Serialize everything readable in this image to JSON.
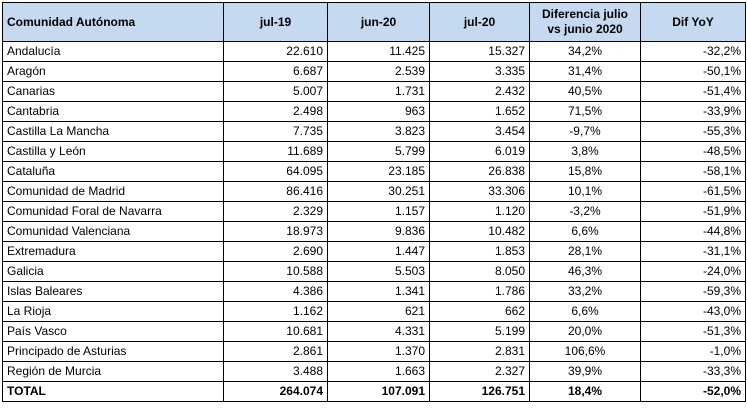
{
  "headers": [
    "Comunidad Autónoma",
    "jul-19",
    "jun-20",
    "jul-20",
    "Diferencia julio vs junio 2020",
    "Dif YoY"
  ],
  "rows": [
    [
      "Andalucía",
      "22.610",
      "11.425",
      "15.327",
      "34,2%",
      "-32,2%"
    ],
    [
      "Aragón",
      "6.687",
      "2.539",
      "3.335",
      "31,4%",
      "-50,1%"
    ],
    [
      "Canarias",
      "5.007",
      "1.731",
      "2.432",
      "40,5%",
      "-51,4%"
    ],
    [
      "Cantabria",
      "2.498",
      "963",
      "1.652",
      "71,5%",
      "-33,9%"
    ],
    [
      "Castilla La Mancha",
      "7.735",
      "3.823",
      "3.454",
      "-9,7%",
      "-55,3%"
    ],
    [
      "Castilla y León",
      "11.689",
      "5.799",
      "6.019",
      "3,8%",
      "-48,5%"
    ],
    [
      "Cataluña",
      "64.095",
      "23.185",
      "26.838",
      "15,8%",
      "-58,1%"
    ],
    [
      "Comunidad de Madrid",
      "86.416",
      "30.251",
      "33.306",
      "10,1%",
      "-61,5%"
    ],
    [
      "Comunidad Foral de Navarra",
      "2.329",
      "1.157",
      "1.120",
      "-3,2%",
      "-51,9%"
    ],
    [
      "Comunidad Valenciana",
      "18.973",
      "9.836",
      "10.482",
      "6,6%",
      "-44,8%"
    ],
    [
      "Extremadura",
      "2.690",
      "1.447",
      "1.853",
      "28,1%",
      "-31,1%"
    ],
    [
      "Galicia",
      "10.588",
      "5.503",
      "8.050",
      "46,3%",
      "-24,0%"
    ],
    [
      "Islas Baleares",
      "4.386",
      "1.341",
      "1.786",
      "33,2%",
      "-59,3%"
    ],
    [
      "La Rioja",
      "1.162",
      "621",
      "662",
      "6,6%",
      "-43,0%"
    ],
    [
      "País Vasco",
      "10.681",
      "4.331",
      "5.199",
      "20,0%",
      "-51,3%"
    ],
    [
      "Principado de Asturias",
      "2.861",
      "1.370",
      "2.831",
      "106,6%",
      "-1,0%"
    ],
    [
      "Región de Murcia",
      "3.488",
      "1.663",
      "2.327",
      "39,9%",
      "-33,3%"
    ]
  ],
  "total": [
    "TOTAL",
    "264.074",
    "107.091",
    "126.751",
    "18,4%",
    "-52,0%"
  ],
  "colors": {
    "header_bg": "#c5d9f1",
    "border": "#000000"
  }
}
